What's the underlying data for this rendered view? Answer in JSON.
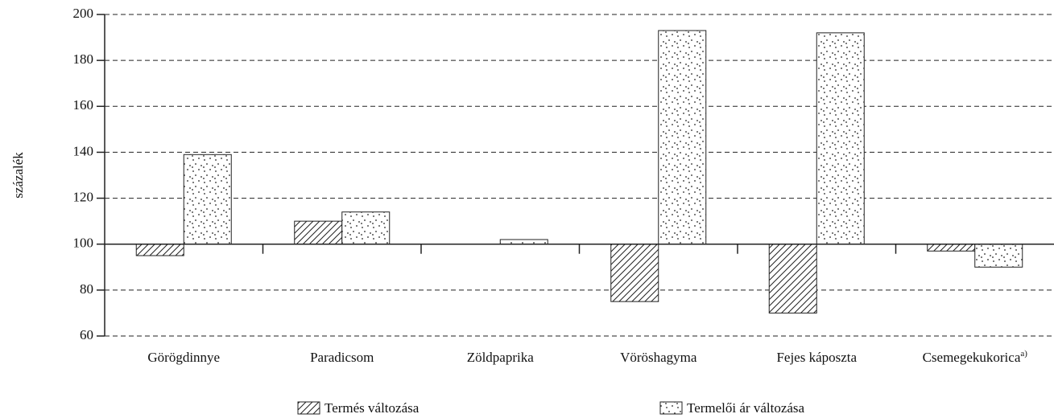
{
  "chart_data": {
    "type": "bar",
    "y_label": "százalék",
    "categories": [
      "Görögdinnye",
      "Paradicsom",
      "Zöldpaprika",
      "Vöröshagyma",
      "Fejes káposzta",
      "Csemegekukorica"
    ],
    "category_marks": [
      null,
      null,
      null,
      null,
      null,
      "a)"
    ],
    "baseline": 100,
    "series": [
      {
        "name": "Termés változása",
        "color": "#222222",
        "pattern": "hatch",
        "values": [
          95,
          110,
          100,
          75,
          70,
          97
        ]
      },
      {
        "name": "Termelői ár változása",
        "color": "#222222",
        "pattern": "dots",
        "values": [
          139,
          114,
          102,
          193,
          192,
          90
        ]
      }
    ],
    "ylim": [
      60,
      200
    ],
    "yticks": [
      60,
      80,
      100,
      120,
      140,
      160,
      180,
      200
    ],
    "grid": true
  }
}
